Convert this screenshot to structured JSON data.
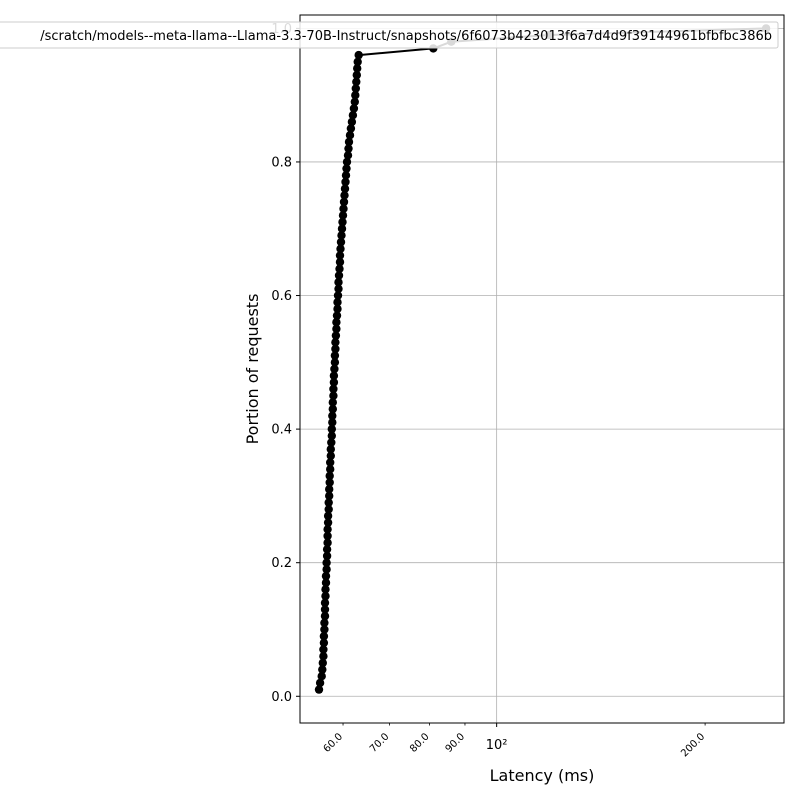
{
  "chart_data": {
    "type": "line",
    "xlabel": "Latency (ms)",
    "ylabel": "Portion of requests",
    "xscale": "log",
    "xlim": [
      52,
      260
    ],
    "ylim": [
      -0.04,
      1.02
    ],
    "grid": true,
    "legend": {
      "position": "top-right",
      "entries": [
        "/scratch/models--meta-llama--Llama-3.3-70B-Instruct/snapshots/6f6073b423013f6a7d4d9f39144961bfbfbc386b"
      ]
    },
    "x_major_ticks": [
      {
        "value": 100,
        "label": "10²"
      }
    ],
    "x_minor_ticks": [
      {
        "value": 60,
        "label": "60.0"
      },
      {
        "value": 70,
        "label": "70.0"
      },
      {
        "value": 80,
        "label": "80.0"
      },
      {
        "value": 90,
        "label": "90.0"
      },
      {
        "value": 200,
        "label": "200.0"
      }
    ],
    "y_ticks": [
      {
        "value": 0.0,
        "label": "0.0"
      },
      {
        "value": 0.2,
        "label": "0.2"
      },
      {
        "value": 0.4,
        "label": "0.4"
      },
      {
        "value": 0.6,
        "label": "0.6"
      },
      {
        "value": 0.8,
        "label": "0.8"
      },
      {
        "value": 1.0,
        "label": "1.0"
      }
    ],
    "series": [
      {
        "name": "/scratch/models--meta-llama--Llama-3.3-70B-Instruct/snapshots/6f6073b423013f6a7d4d9f39144961bfbfbc386b",
        "color": "#000000",
        "x": [
          55.4,
          55.6,
          55.9,
          56.0,
          56.1,
          56.2,
          56.2,
          56.3,
          56.3,
          56.4,
          56.4,
          56.5,
          56.5,
          56.5,
          56.6,
          56.6,
          56.7,
          56.7,
          56.8,
          56.8,
          56.9,
          56.9,
          57.0,
          57.0,
          57.0,
          57.1,
          57.1,
          57.2,
          57.2,
          57.3,
          57.3,
          57.4,
          57.4,
          57.5,
          57.5,
          57.6,
          57.6,
          57.7,
          57.8,
          57.8,
          57.9,
          57.9,
          58.0,
          58.0,
          58.1,
          58.1,
          58.2,
          58.2,
          58.3,
          58.4,
          58.4,
          58.5,
          58.5,
          58.6,
          58.7,
          58.7,
          58.8,
          58.9,
          58.9,
          59.0,
          59.1,
          59.1,
          59.2,
          59.3,
          59.4,
          59.4,
          59.5,
          59.6,
          59.7,
          59.8,
          59.9,
          60.0,
          60.1,
          60.2,
          60.3,
          60.4,
          60.5,
          60.6,
          60.7,
          60.8,
          61.0,
          61.1,
          61.2,
          61.4,
          61.6,
          61.8,
          62.0,
          62.2,
          62.4,
          62.5,
          62.6,
          62.7,
          62.8,
          62.9,
          63.0,
          63.2,
          81.0,
          86.0,
          119.0,
          245.0
        ],
        "y": [
          0.01,
          0.02,
          0.03,
          0.04,
          0.05,
          0.06,
          0.07,
          0.08,
          0.09,
          0.1,
          0.11,
          0.12,
          0.13,
          0.14,
          0.15,
          0.16,
          0.17,
          0.18,
          0.19,
          0.2,
          0.21,
          0.22,
          0.23,
          0.24,
          0.25,
          0.26,
          0.27,
          0.28,
          0.29,
          0.3,
          0.31,
          0.32,
          0.33,
          0.34,
          0.35,
          0.36,
          0.37,
          0.38,
          0.39,
          0.4,
          0.41,
          0.42,
          0.43,
          0.44,
          0.45,
          0.46,
          0.47,
          0.48,
          0.49,
          0.5,
          0.51,
          0.52,
          0.53,
          0.54,
          0.55,
          0.56,
          0.57,
          0.58,
          0.59,
          0.6,
          0.61,
          0.62,
          0.63,
          0.64,
          0.65,
          0.66,
          0.67,
          0.68,
          0.69,
          0.7,
          0.71,
          0.72,
          0.73,
          0.74,
          0.75,
          0.76,
          0.77,
          0.78,
          0.79,
          0.8,
          0.81,
          0.82,
          0.83,
          0.84,
          0.85,
          0.86,
          0.87,
          0.88,
          0.89,
          0.9,
          0.91,
          0.92,
          0.93,
          0.94,
          0.95,
          0.96,
          0.97,
          0.98,
          0.99,
          1.0
        ]
      }
    ]
  }
}
